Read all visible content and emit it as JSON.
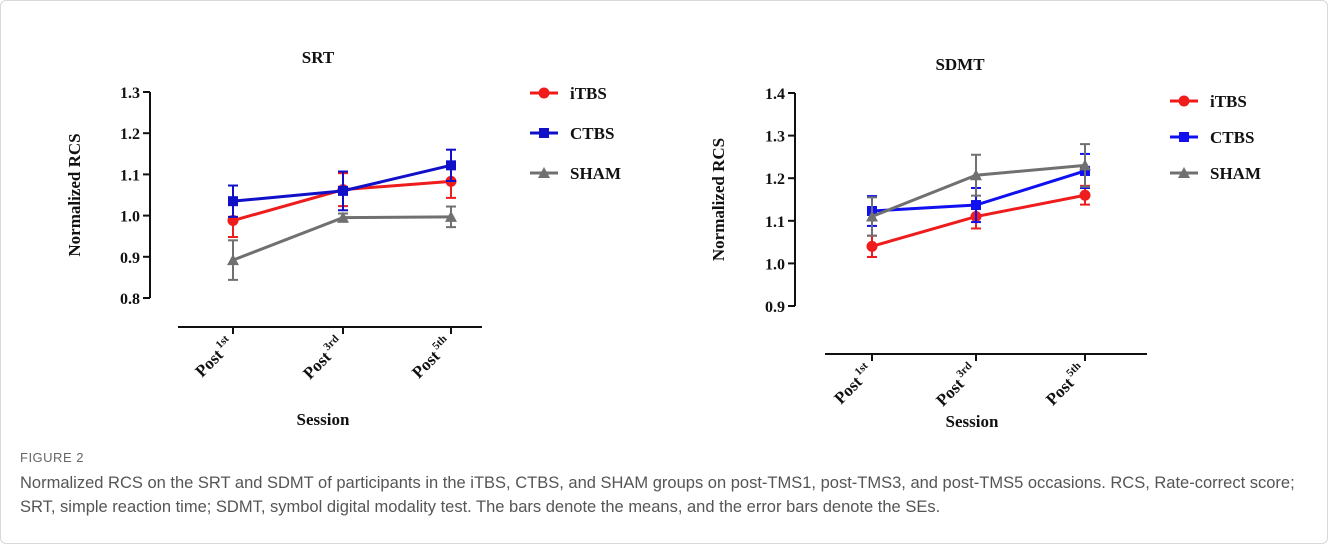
{
  "figure": {
    "label": "FIGURE 2",
    "caption": "Normalized RCS on the SRT and SDMT of participants in the iTBS, CTBS, and SHAM groups on post-TMS1, post-TMS3, and post-TMS5 occasions. RCS, Rate-correct score; SRT, simple reaction time; SDMT, symbol digital modality test. The bars denote the means, and the error bars denote the SEs."
  },
  "chart_data": [
    {
      "type": "line",
      "title": "SRT",
      "xlabel": "Session",
      "ylabel": "Normalized RCS",
      "categories": [
        {
          "base": "Post",
          "sup": "1st"
        },
        {
          "base": "Post",
          "sup": "3rd"
        },
        {
          "base": "Post",
          "sup": "5th"
        }
      ],
      "ylim": [
        0.8,
        1.3
      ],
      "yticks": [
        "0.8",
        "0.9",
        "1.0",
        "1.1",
        "1.2",
        "1.3"
      ],
      "grid": false,
      "legend_position": "right",
      "series": [
        {
          "name": "iTBS",
          "color": "#ee1c1c",
          "marker": "circle",
          "values": [
            0.988,
            1.063,
            1.083
          ],
          "errors": [
            0.04,
            0.04,
            0.04
          ]
        },
        {
          "name": "CTBS",
          "color": "#1010c8",
          "marker": "square",
          "values": [
            1.035,
            1.06,
            1.122
          ],
          "errors": [
            0.038,
            0.047,
            0.038
          ]
        },
        {
          "name": "SHAM",
          "color": "#707070",
          "marker": "triangle",
          "values": [
            0.892,
            0.995,
            0.997
          ],
          "errors": [
            0.048,
            0.01,
            0.025
          ]
        }
      ]
    },
    {
      "type": "line",
      "title": "SDMT",
      "xlabel": "Session",
      "ylabel": "Normalized RCS",
      "categories": [
        {
          "base": "Post",
          "sup": "1st"
        },
        {
          "base": "Post",
          "sup": "3rd"
        },
        {
          "base": "Post",
          "sup": "5th"
        }
      ],
      "ylim": [
        0.9,
        1.4
      ],
      "yticks": [
        "0.9",
        "1.0",
        "1.1",
        "1.2",
        "1.3",
        "1.4"
      ],
      "grid": false,
      "legend_position": "right",
      "series": [
        {
          "name": "iTBS",
          "color": "#ee1c1c",
          "marker": "circle",
          "values": [
            1.04,
            1.11,
            1.16
          ],
          "errors": [
            0.025,
            0.028,
            0.022
          ]
        },
        {
          "name": "CTBS",
          "color": "#1010f0",
          "marker": "square",
          "values": [
            1.123,
            1.137,
            1.217
          ],
          "errors": [
            0.035,
            0.04,
            0.04
          ]
        },
        {
          "name": "SHAM",
          "color": "#707070",
          "marker": "triangle",
          "values": [
            1.11,
            1.207,
            1.23
          ],
          "errors": [
            0.045,
            0.048,
            0.05
          ]
        }
      ]
    }
  ]
}
